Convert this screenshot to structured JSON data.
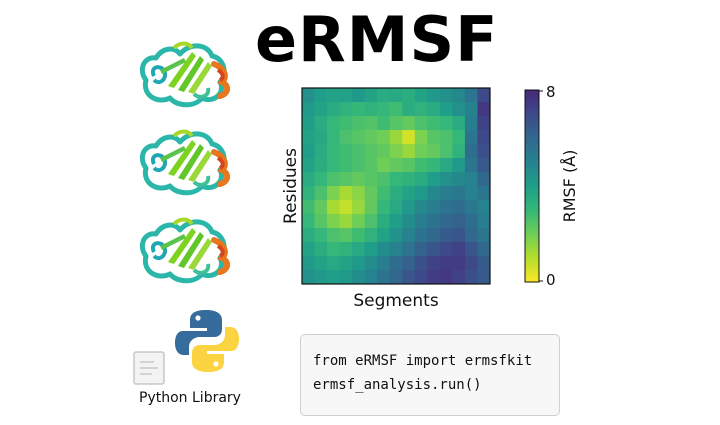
{
  "title": "eRMSF",
  "library": {
    "label": "Python Library",
    "icon": "python-logo-icon",
    "document_icon": "document-icon"
  },
  "code": {
    "line1": {
      "kw1": "from",
      "module": "eRMSF",
      "kw2": "import",
      "name": "ermsfkit"
    },
    "line2": "ermsf_analysis.run()"
  },
  "proteins": [
    {
      "icon": "protein-ribbon-icon"
    },
    {
      "icon": "protein-ribbon-icon"
    },
    {
      "icon": "protein-ribbon-icon"
    }
  ],
  "chart_data": {
    "type": "heatmap",
    "title": "",
    "xlabel": "Segments",
    "ylabel": "Residues",
    "colorbar": {
      "label": "RMSF (Å)",
      "min": 0,
      "max": 8,
      "tick_labels": [
        "8",
        "0"
      ]
    },
    "colormap": [
      "#fde725",
      "#b5de2b",
      "#6ece58",
      "#35b779",
      "#1f9e89",
      "#26828e",
      "#31688e",
      "#3e4989",
      "#482878"
    ],
    "grid": false,
    "values": [
      [
        4.5,
        4.0,
        3.8,
        3.9,
        4.2,
        3.8,
        3.5,
        3.6,
        3.4,
        3.8,
        4.2,
        4.5,
        4.8,
        5.5,
        7.0
      ],
      [
        4.2,
        3.8,
        3.5,
        3.2,
        3.0,
        3.2,
        3.0,
        2.8,
        3.4,
        3.2,
        3.5,
        4.0,
        4.5,
        5.0,
        7.5
      ],
      [
        4.0,
        3.5,
        3.0,
        2.8,
        2.6,
        2.5,
        2.8,
        2.4,
        2.2,
        2.6,
        2.8,
        3.0,
        3.5,
        5.2,
        7.2
      ],
      [
        3.8,
        3.6,
        3.0,
        2.6,
        2.4,
        2.2,
        2.0,
        1.4,
        0.6,
        1.8,
        2.4,
        2.6,
        3.0,
        5.5,
        7.0
      ],
      [
        4.0,
        3.5,
        3.0,
        2.8,
        2.6,
        2.4,
        2.2,
        1.8,
        1.4,
        2.0,
        2.2,
        2.6,
        3.2,
        5.8,
        6.8
      ],
      [
        3.8,
        3.4,
        3.0,
        2.8,
        2.6,
        2.4,
        2.0,
        2.2,
        2.4,
        2.8,
        3.0,
        3.6,
        4.2,
        5.5,
        6.5
      ],
      [
        3.5,
        3.0,
        2.6,
        2.4,
        2.2,
        2.4,
        2.6,
        3.0,
        3.2,
        3.5,
        4.0,
        4.5,
        4.8,
        5.0,
        6.0
      ],
      [
        3.2,
        2.6,
        1.8,
        1.2,
        1.6,
        2.2,
        2.8,
        3.4,
        3.8,
        4.2,
        4.8,
        5.2,
        5.4,
        5.0,
        5.5
      ],
      [
        2.8,
        2.2,
        1.2,
        0.8,
        1.4,
        2.2,
        3.0,
        3.6,
        4.2,
        4.8,
        5.2,
        5.6,
        5.8,
        5.4,
        5.0
      ],
      [
        3.0,
        2.4,
        1.8,
        1.4,
        2.0,
        2.6,
        3.4,
        4.0,
        4.6,
        5.2,
        5.6,
        6.0,
        6.2,
        5.8,
        5.2
      ],
      [
        3.4,
        3.0,
        2.6,
        2.4,
        2.8,
        3.2,
        3.8,
        4.4,
        5.0,
        5.6,
        6.0,
        6.4,
        6.6,
        6.0,
        5.5
      ],
      [
        3.8,
        3.4,
        3.0,
        3.2,
        3.6,
        4.0,
        4.6,
        5.0,
        5.6,
        6.2,
        6.6,
        7.0,
        7.2,
        6.6,
        6.0
      ],
      [
        4.2,
        3.8,
        3.6,
        3.8,
        4.2,
        4.6,
        5.2,
        5.8,
        6.2,
        6.8,
        7.2,
        7.4,
        7.4,
        7.0,
        6.4
      ],
      [
        4.5,
        4.2,
        4.0,
        4.2,
        4.6,
        5.0,
        5.6,
        6.0,
        6.6,
        7.0,
        7.4,
        7.5,
        7.2,
        6.8,
        6.5
      ]
    ]
  }
}
